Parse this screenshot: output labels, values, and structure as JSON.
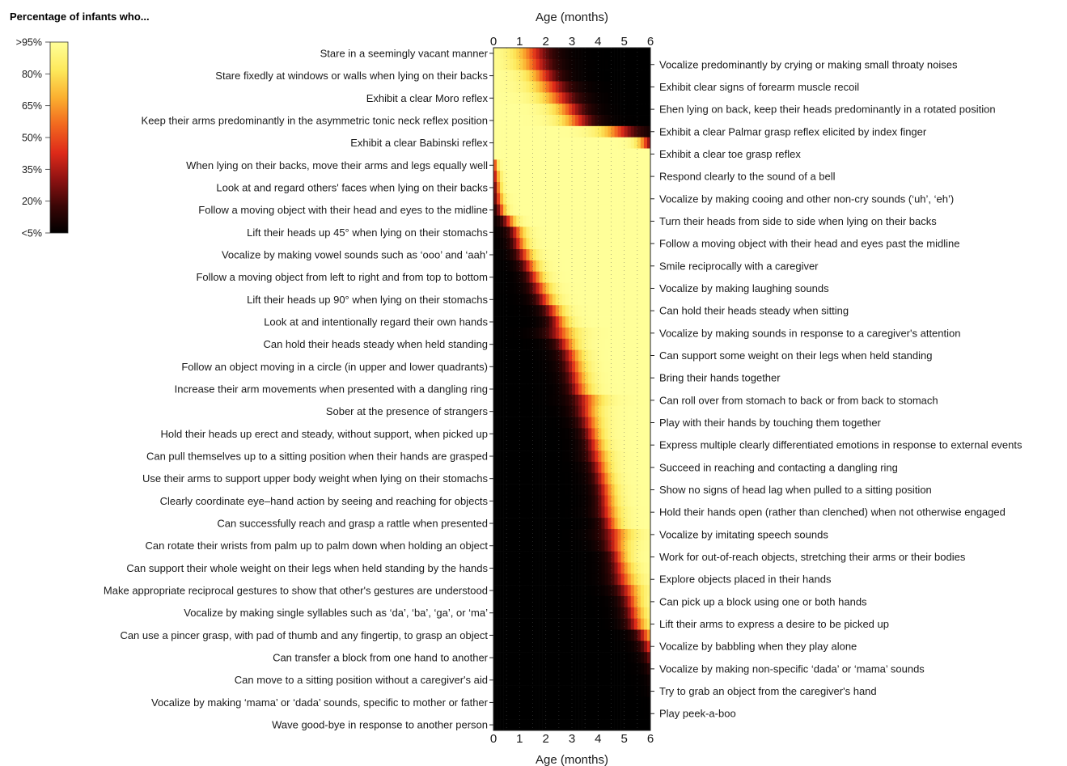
{
  "chart_data": {
    "type": "heatmap",
    "title": "Percentage of infants who...",
    "xlabel": "Age (months)",
    "x_ticks": [
      0,
      1,
      2,
      3,
      4,
      5,
      6
    ],
    "xlim": [
      0,
      6
    ],
    "colorbar_labels": [
      ">95%",
      "80%",
      "65%",
      "50%",
      "35%",
      "20%",
      "<5%"
    ],
    "colormap_stops": [
      "#000000",
      "#3a0606",
      "#8e1212",
      "#de2a19",
      "#f26a1f",
      "#fbb030",
      "#fde85a",
      "#ffff99"
    ],
    "rows": [
      {
        "label": "Stare in a seemingly vacant manner",
        "mode": "dec",
        "t": 1.5,
        "s": 0.9
      },
      {
        "label": "Vocalize predominantly by crying or making small throaty noises",
        "mode": "dec",
        "t": 1.6,
        "s": 0.9
      },
      {
        "label": "Stare fixedly at windows or walls when lying on their backs",
        "mode": "dec",
        "t": 1.9,
        "s": 0.8
      },
      {
        "label": "Exhibit clear signs of forearm muscle recoil",
        "mode": "dec",
        "t": 2.2,
        "s": 0.9
      },
      {
        "label": "Exhibit a clear Moro reflex",
        "mode": "dec",
        "t": 2.5,
        "s": 0.9
      },
      {
        "label": "Ehen lying on back, keep their heads predominantly in a rotated position",
        "mode": "dec",
        "t": 2.9,
        "s": 0.8
      },
      {
        "label": "Keep their arms predominantly in the asymmetric tonic neck reflex position",
        "mode": "dec",
        "t": 3.2,
        "s": 0.8
      },
      {
        "label": "Exhibit a clear Palmar grasp reflex elicited by index finger",
        "mode": "dec",
        "t": 4.8,
        "s": 0.9
      },
      {
        "label": "Exhibit a clear Babinski reflex",
        "mode": "dec",
        "t": 5.8,
        "s": 0.4
      },
      {
        "label": "Exhibit a clear toe grasp reflex",
        "mode": "dec",
        "t": 7.5,
        "s": 0.3
      },
      {
        "label": "When lying on their backs, move their arms and legs equally well",
        "mode": "inc",
        "t": 0.05,
        "s": 0.15
      },
      {
        "label": "Respond clearly to the sound of a bell",
        "mode": "inc",
        "t": 0.1,
        "s": 0.2
      },
      {
        "label": "Look at and regard others' faces when lying on their backs",
        "mode": "inc",
        "t": 0.15,
        "s": 0.2
      },
      {
        "label": "Vocalize by making cooing and other non-cry sounds (‘uh’, ‘eh’)",
        "mode": "inc",
        "t": 0.2,
        "s": 0.25
      },
      {
        "label": "Follow a moving object with their head and eyes to the midline",
        "mode": "inc",
        "t": 0.3,
        "s": 0.25
      },
      {
        "label": "Turn their heads from side to side when lying on their backs",
        "mode": "inc",
        "t": 0.6,
        "s": 0.35
      },
      {
        "label": "Lift their heads up 45° when lying on their stomachs",
        "mode": "inc",
        "t": 0.9,
        "s": 0.4
      },
      {
        "label": "Follow a moving object with their head and eyes past the midline",
        "mode": "inc",
        "t": 1.0,
        "s": 0.4
      },
      {
        "label": "Vocalize by making vowel sounds such as ‘ooo’ and ‘aah’",
        "mode": "inc",
        "t": 1.2,
        "s": 0.45
      },
      {
        "label": "Smile reciprocally with a caregiver",
        "mode": "inc",
        "t": 1.4,
        "s": 0.45
      },
      {
        "label": "Follow a moving object from left to right and from top to bottom",
        "mode": "inc",
        "t": 1.6,
        "s": 0.45
      },
      {
        "label": "Vocalize by making laughing sounds",
        "mode": "inc",
        "t": 1.8,
        "s": 0.5
      },
      {
        "label": "Lift their heads up 90° when lying on their stomachs",
        "mode": "inc",
        "t": 2.0,
        "s": 0.5
      },
      {
        "label": "Can hold their heads steady when sitting",
        "mode": "inc",
        "t": 2.3,
        "s": 0.5
      },
      {
        "label": "Look at and intentionally regard their own hands",
        "mode": "inc",
        "t": 2.5,
        "s": 0.5
      },
      {
        "label": "Vocalize by making sounds in response to a caregiver's attention",
        "mode": "inc",
        "t": 2.6,
        "s": 0.7
      },
      {
        "label": "Can hold their heads steady when held standing",
        "mode": "inc",
        "t": 2.8,
        "s": 0.55
      },
      {
        "label": "Can support some weight on their legs when held standing",
        "mode": "inc",
        "t": 3.0,
        "s": 0.55
      },
      {
        "label": "Follow an object moving in a circle (in upper and lower quadrants)",
        "mode": "inc",
        "t": 3.1,
        "s": 0.55
      },
      {
        "label": "Bring their hands together",
        "mode": "inc",
        "t": 3.2,
        "s": 0.55
      },
      {
        "label": "Increase their arm movements when presented with a dangling ring",
        "mode": "inc",
        "t": 3.3,
        "s": 0.55
      },
      {
        "label": "Can roll over from stomach to back or from back to stomach",
        "mode": "inc",
        "t": 3.6,
        "s": 0.7
      },
      {
        "label": "Sober at the presence of strangers",
        "mode": "inc",
        "t": 3.6,
        "s": 0.6
      },
      {
        "label": "Play with their hands by touching them together",
        "mode": "inc",
        "t": 3.7,
        "s": 0.55
      },
      {
        "label": "Hold their heads up erect and steady, without support, when picked up",
        "mode": "inc",
        "t": 3.8,
        "s": 0.5
      },
      {
        "label": "Express multiple clearly differentiated emotions in response to external events",
        "mode": "inc",
        "t": 3.9,
        "s": 0.5
      },
      {
        "label": "Can pull themselves up to a sitting position when their hands are grasped",
        "mode": "inc",
        "t": 4.0,
        "s": 0.55
      },
      {
        "label": "Succeed in reaching and contacting a dangling ring",
        "mode": "inc",
        "t": 4.1,
        "s": 0.5
      },
      {
        "label": "Use their arms to support upper body weight when lying on their stomachs",
        "mode": "inc",
        "t": 4.2,
        "s": 0.5
      },
      {
        "label": "Show no signs of head lag when pulled to a sitting position",
        "mode": "inc",
        "t": 4.3,
        "s": 0.5
      },
      {
        "label": "Clearly coordinate eye–hand action by seeing and reaching for objects",
        "mode": "inc",
        "t": 4.35,
        "s": 0.5
      },
      {
        "label": "Hold their hands open (rather than clenched) when not otherwise engaged",
        "mode": "inc",
        "t": 4.4,
        "s": 0.55
      },
      {
        "label": "Can successfully reach and grasp a rattle when presented",
        "mode": "inc",
        "t": 4.5,
        "s": 0.5
      },
      {
        "label": "Vocalize by imitating speech sounds",
        "mode": "inc",
        "t": 4.7,
        "s": 0.7
      },
      {
        "label": "Can rotate their wrists from palm up to palm down when holding an object",
        "mode": "inc",
        "t": 4.7,
        "s": 0.6
      },
      {
        "label": "Work for out-of-reach objects, stretching their arms or their bodies",
        "mode": "inc",
        "t": 4.8,
        "s": 0.5
      },
      {
        "label": "Can support their whole weight on their legs when held standing by the hands",
        "mode": "inc",
        "t": 4.9,
        "s": 0.55
      },
      {
        "label": "Explore objects placed in their hands",
        "mode": "inc",
        "t": 5.0,
        "s": 0.6
      },
      {
        "label": "Make appropriate reciprocal gestures to show that other's gestures are understood",
        "mode": "inc",
        "t": 5.2,
        "s": 0.6
      },
      {
        "label": "Can pick up a block using one or both hands",
        "mode": "inc",
        "t": 5.3,
        "s": 0.5
      },
      {
        "label": "Vocalize by making single syllables such as ‘da’, ‘ba’, ‘ga’, or ‘ma’",
        "mode": "inc",
        "t": 5.4,
        "s": 0.5
      },
      {
        "label": "Lift their arms to express a desire to be picked up",
        "mode": "inc",
        "t": 5.5,
        "s": 0.5
      },
      {
        "label": "Can use a pincer grasp, with pad of thumb and any fingertip, to grasp an object",
        "mode": "inc",
        "t": 5.8,
        "s": 0.45
      },
      {
        "label": "Vocalize by babbling when they play alone",
        "mode": "inc",
        "t": 6.0,
        "s": 0.45
      },
      {
        "label": "Can transfer a block from one hand to another",
        "mode": "inc",
        "t": 6.2,
        "s": 0.45
      },
      {
        "label": "Vocalize by making non-specific ‘dada’ or ‘mama’ sounds",
        "mode": "inc",
        "t": 6.4,
        "s": 0.45
      },
      {
        "label": "Can move to a sitting position without a caregiver's aid",
        "mode": "inc",
        "t": 6.6,
        "s": 0.45
      },
      {
        "label": "Try to grab an object from the caregiver's hand",
        "mode": "inc",
        "t": 6.7,
        "s": 0.45
      },
      {
        "label": "Vocalize by making ‘mama’ or ‘dada’ sounds, specific to mother or father",
        "mode": "inc",
        "t": 7.0,
        "s": 0.45
      },
      {
        "label": "Play peek-a-boo",
        "mode": "inc",
        "t": 7.1,
        "s": 0.45
      },
      {
        "label": "Wave good-bye in response to another person",
        "mode": "inc",
        "t": 7.5,
        "s": 0.45
      }
    ]
  }
}
